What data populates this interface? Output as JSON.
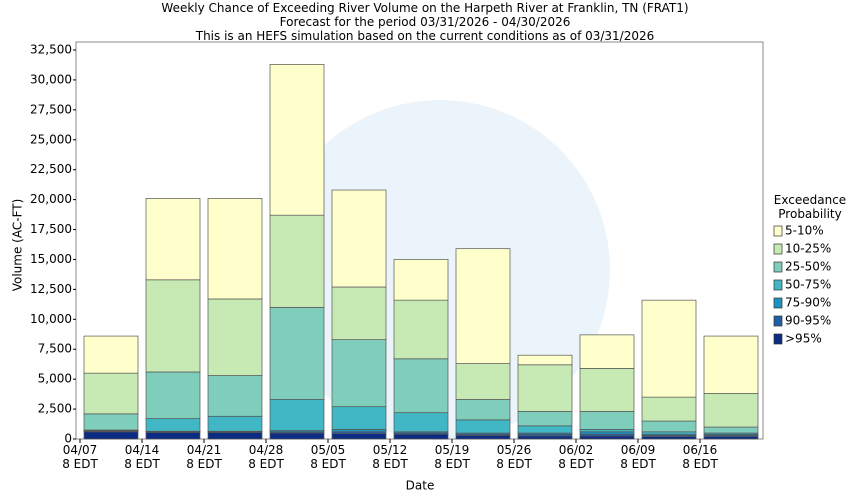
{
  "chart_data": {
    "type": "stacked_bar",
    "title": [
      "Weekly Chance of Exceeding River Volume on the Harpeth River at Franklin, TN (FRAT1)",
      "Forecast for the period 03/31/2026 - 04/30/2026",
      "This is an HEFS simulation based on the current conditions as of 03/31/2026"
    ],
    "x_label": "Date",
    "y_label": "Volume (AC-FT)",
    "legend_title": [
      "Exceedance",
      "Probability"
    ],
    "categories": [
      [
        "04/07",
        "8 EDT"
      ],
      [
        "04/14",
        "8 EDT"
      ],
      [
        "04/21",
        "8 EDT"
      ],
      [
        "04/28",
        "8 EDT"
      ],
      [
        "05/05",
        "8 EDT"
      ],
      [
        "05/12",
        "8 EDT"
      ],
      [
        "05/19",
        "8 EDT"
      ],
      [
        "05/26",
        "8 EDT"
      ],
      [
        "06/02",
        "8 EDT"
      ],
      [
        "06/09",
        "8 EDT"
      ],
      [
        "06/16",
        "8 EDT"
      ]
    ],
    "series": [
      {
        "name": ">95%",
        "color": "#0c2c84",
        "values": [
          600,
          550,
          550,
          500,
          450,
          400,
          300,
          250,
          250,
          200,
          200
        ]
      },
      {
        "name": "90-95%",
        "color": "#225ea8",
        "values": [
          50,
          50,
          50,
          100,
          150,
          100,
          100,
          150,
          150,
          100,
          100
        ]
      },
      {
        "name": "75-90%",
        "color": "#1d91c0",
        "values": [
          50,
          50,
          50,
          100,
          200,
          100,
          100,
          100,
          200,
          100,
          100
        ]
      },
      {
        "name": "50-75%",
        "color": "#41b6c4",
        "values": [
          50,
          1050,
          1250,
          2600,
          1900,
          1600,
          1100,
          600,
          200,
          200,
          100
        ]
      },
      {
        "name": "25-50%",
        "color": "#7fcdbb",
        "values": [
          1350,
          3900,
          3400,
          7700,
          5600,
          4500,
          1700,
          1200,
          1500,
          900,
          500
        ]
      },
      {
        "name": "10-25%",
        "color": "#c7e9b4",
        "values": [
          3400,
          7700,
          6400,
          7700,
          4400,
          4900,
          3000,
          3900,
          3600,
          2000,
          2800
        ]
      },
      {
        "name": "5-10%",
        "color": "#ffffcc",
        "values": [
          3100,
          6800,
          8400,
          12600,
          8100,
          3400,
          9600,
          800,
          2800,
          8100,
          4800
        ]
      }
    ],
    "ylim": [
      0,
      32500
    ],
    "yticks": [
      0,
      {
        "value": 2500,
        "label": "2,500"
      },
      {
        "value": 5000,
        "label": "5,000"
      },
      {
        "value": 7500,
        "label": "7,500"
      },
      {
        "value": 10000,
        "label": "10,000"
      },
      {
        "value": 12500,
        "label": "12,500"
      },
      {
        "value": 15000,
        "label": "15,000"
      },
      {
        "value": 17500,
        "label": "17,500"
      },
      {
        "value": 20000,
        "label": "20,000"
      },
      {
        "value": 22500,
        "label": "22,500"
      },
      {
        "value": 25000,
        "label": "25,000"
      },
      {
        "value": 27500,
        "label": "27,500"
      },
      {
        "value": 30000,
        "label": "30,000"
      },
      {
        "value": 32500,
        "label": "32,500"
      }
    ],
    "grid": false
  }
}
